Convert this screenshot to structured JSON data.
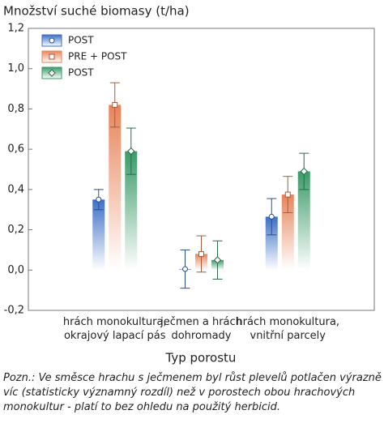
{
  "chart_data": {
    "type": "bar",
    "title": "Množství suché biomasy (t/ha)",
    "xlabel": "Typ porostu",
    "note": "Pozn.: Ve směsce hrachu s ječmenem byl růst plevelů potlačen výrazně víc (statisticky významný rozdíl) než v porostech obou hrachových monokultur - platí to bez ohledu na použitý herbicid.",
    "categories": [
      "hrách monokultura,\nokrajový lapací pás",
      "ječmen a hrách\ndohromady",
      "hrách monokultura,\nvnitřní parcely"
    ],
    "series": [
      {
        "name": "POST",
        "color": "#3b6fc6",
        "values": [
          0.35,
          0.005,
          0.265
        ],
        "errors": [
          0.05,
          0.095,
          0.09
        ]
      },
      {
        "name": "PRE + POST",
        "color": "#e8845a",
        "values": [
          0.82,
          0.08,
          0.375
        ],
        "errors": [
          0.11,
          0.09,
          0.09
        ]
      },
      {
        "name": "POST",
        "color": "#3a9a68",
        "values": [
          0.59,
          0.05,
          0.49
        ],
        "errors": [
          0.115,
          0.095,
          0.09
        ]
      }
    ],
    "ylim": [
      -0.2,
      1.2
    ],
    "yticks": [
      {
        "value": -0.2,
        "label": "-0,2"
      },
      {
        "value": 0,
        "label": "0,0"
      },
      {
        "value": 0.2,
        "label": "0,2"
      },
      {
        "value": 0.4,
        "label": "0,4"
      },
      {
        "value": 0.6,
        "label": "0,6"
      },
      {
        "value": 0.8,
        "label": "0,8"
      },
      {
        "value": 1.0,
        "label": "1,0"
      },
      {
        "value": 1.2,
        "label": "1,2"
      }
    ],
    "legend": "upper left"
  }
}
